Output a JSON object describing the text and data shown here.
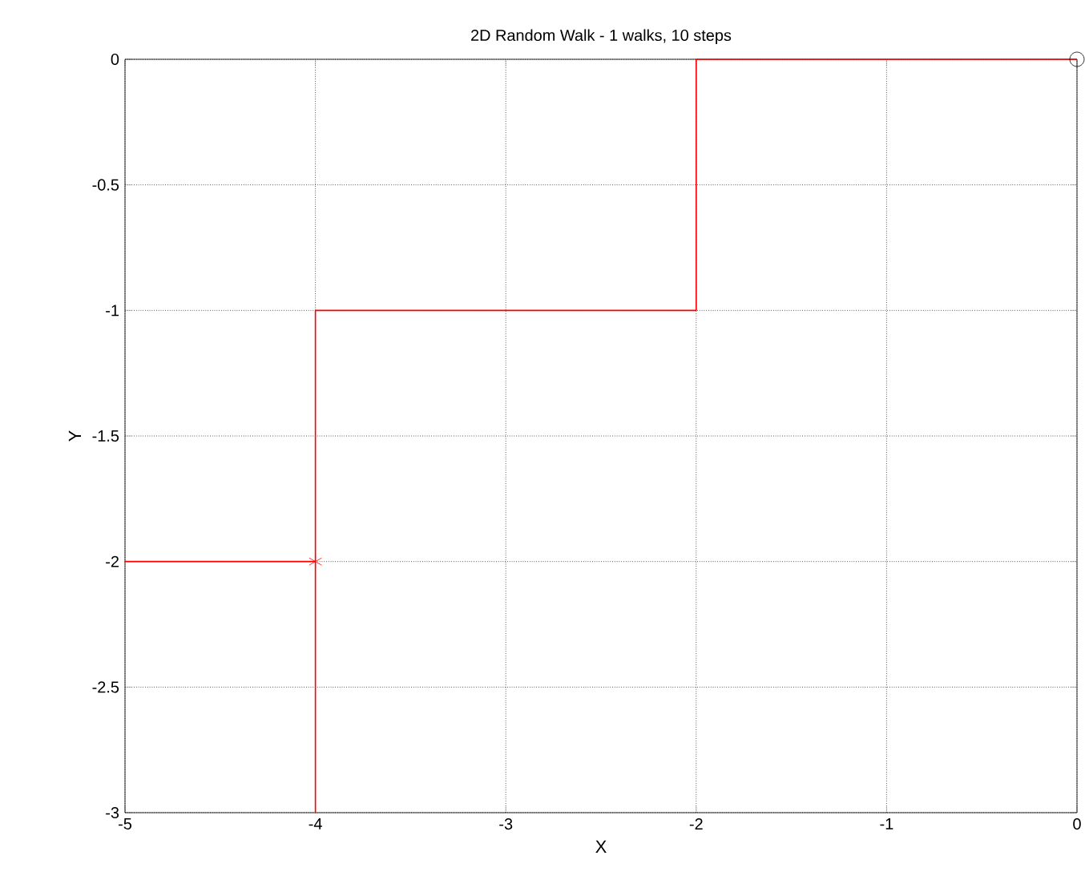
{
  "chart_data": {
    "type": "line",
    "title": "2D Random Walk - 1 walks, 10 steps",
    "xlabel": "X",
    "ylabel": "Y",
    "xlim": [
      -5,
      0
    ],
    "ylim": [
      -3,
      0
    ],
    "xticks": [
      -5,
      -4,
      -3,
      -2,
      -1,
      0
    ],
    "yticks": [
      -3,
      -2.5,
      -2,
      -1.5,
      -1,
      -0.5,
      0
    ],
    "grid": true,
    "series": [
      {
        "color": "#ff0000",
        "x": [
          0,
          -1,
          -2,
          -2,
          -3,
          -4,
          -4,
          -4,
          -4,
          -5,
          -4
        ],
        "values": [
          0,
          0,
          0,
          -1,
          -1,
          -1,
          -2,
          -3,
          -2,
          -2,
          -2
        ],
        "marker": "none"
      },
      {
        "type": "scatter",
        "color": "#000000",
        "x": [
          0
        ],
        "values": [
          0
        ],
        "marker": "circle"
      },
      {
        "type": "scatter",
        "color": "#ff0000",
        "x": [
          -4
        ],
        "values": [
          -2
        ],
        "marker": "cross"
      }
    ]
  }
}
